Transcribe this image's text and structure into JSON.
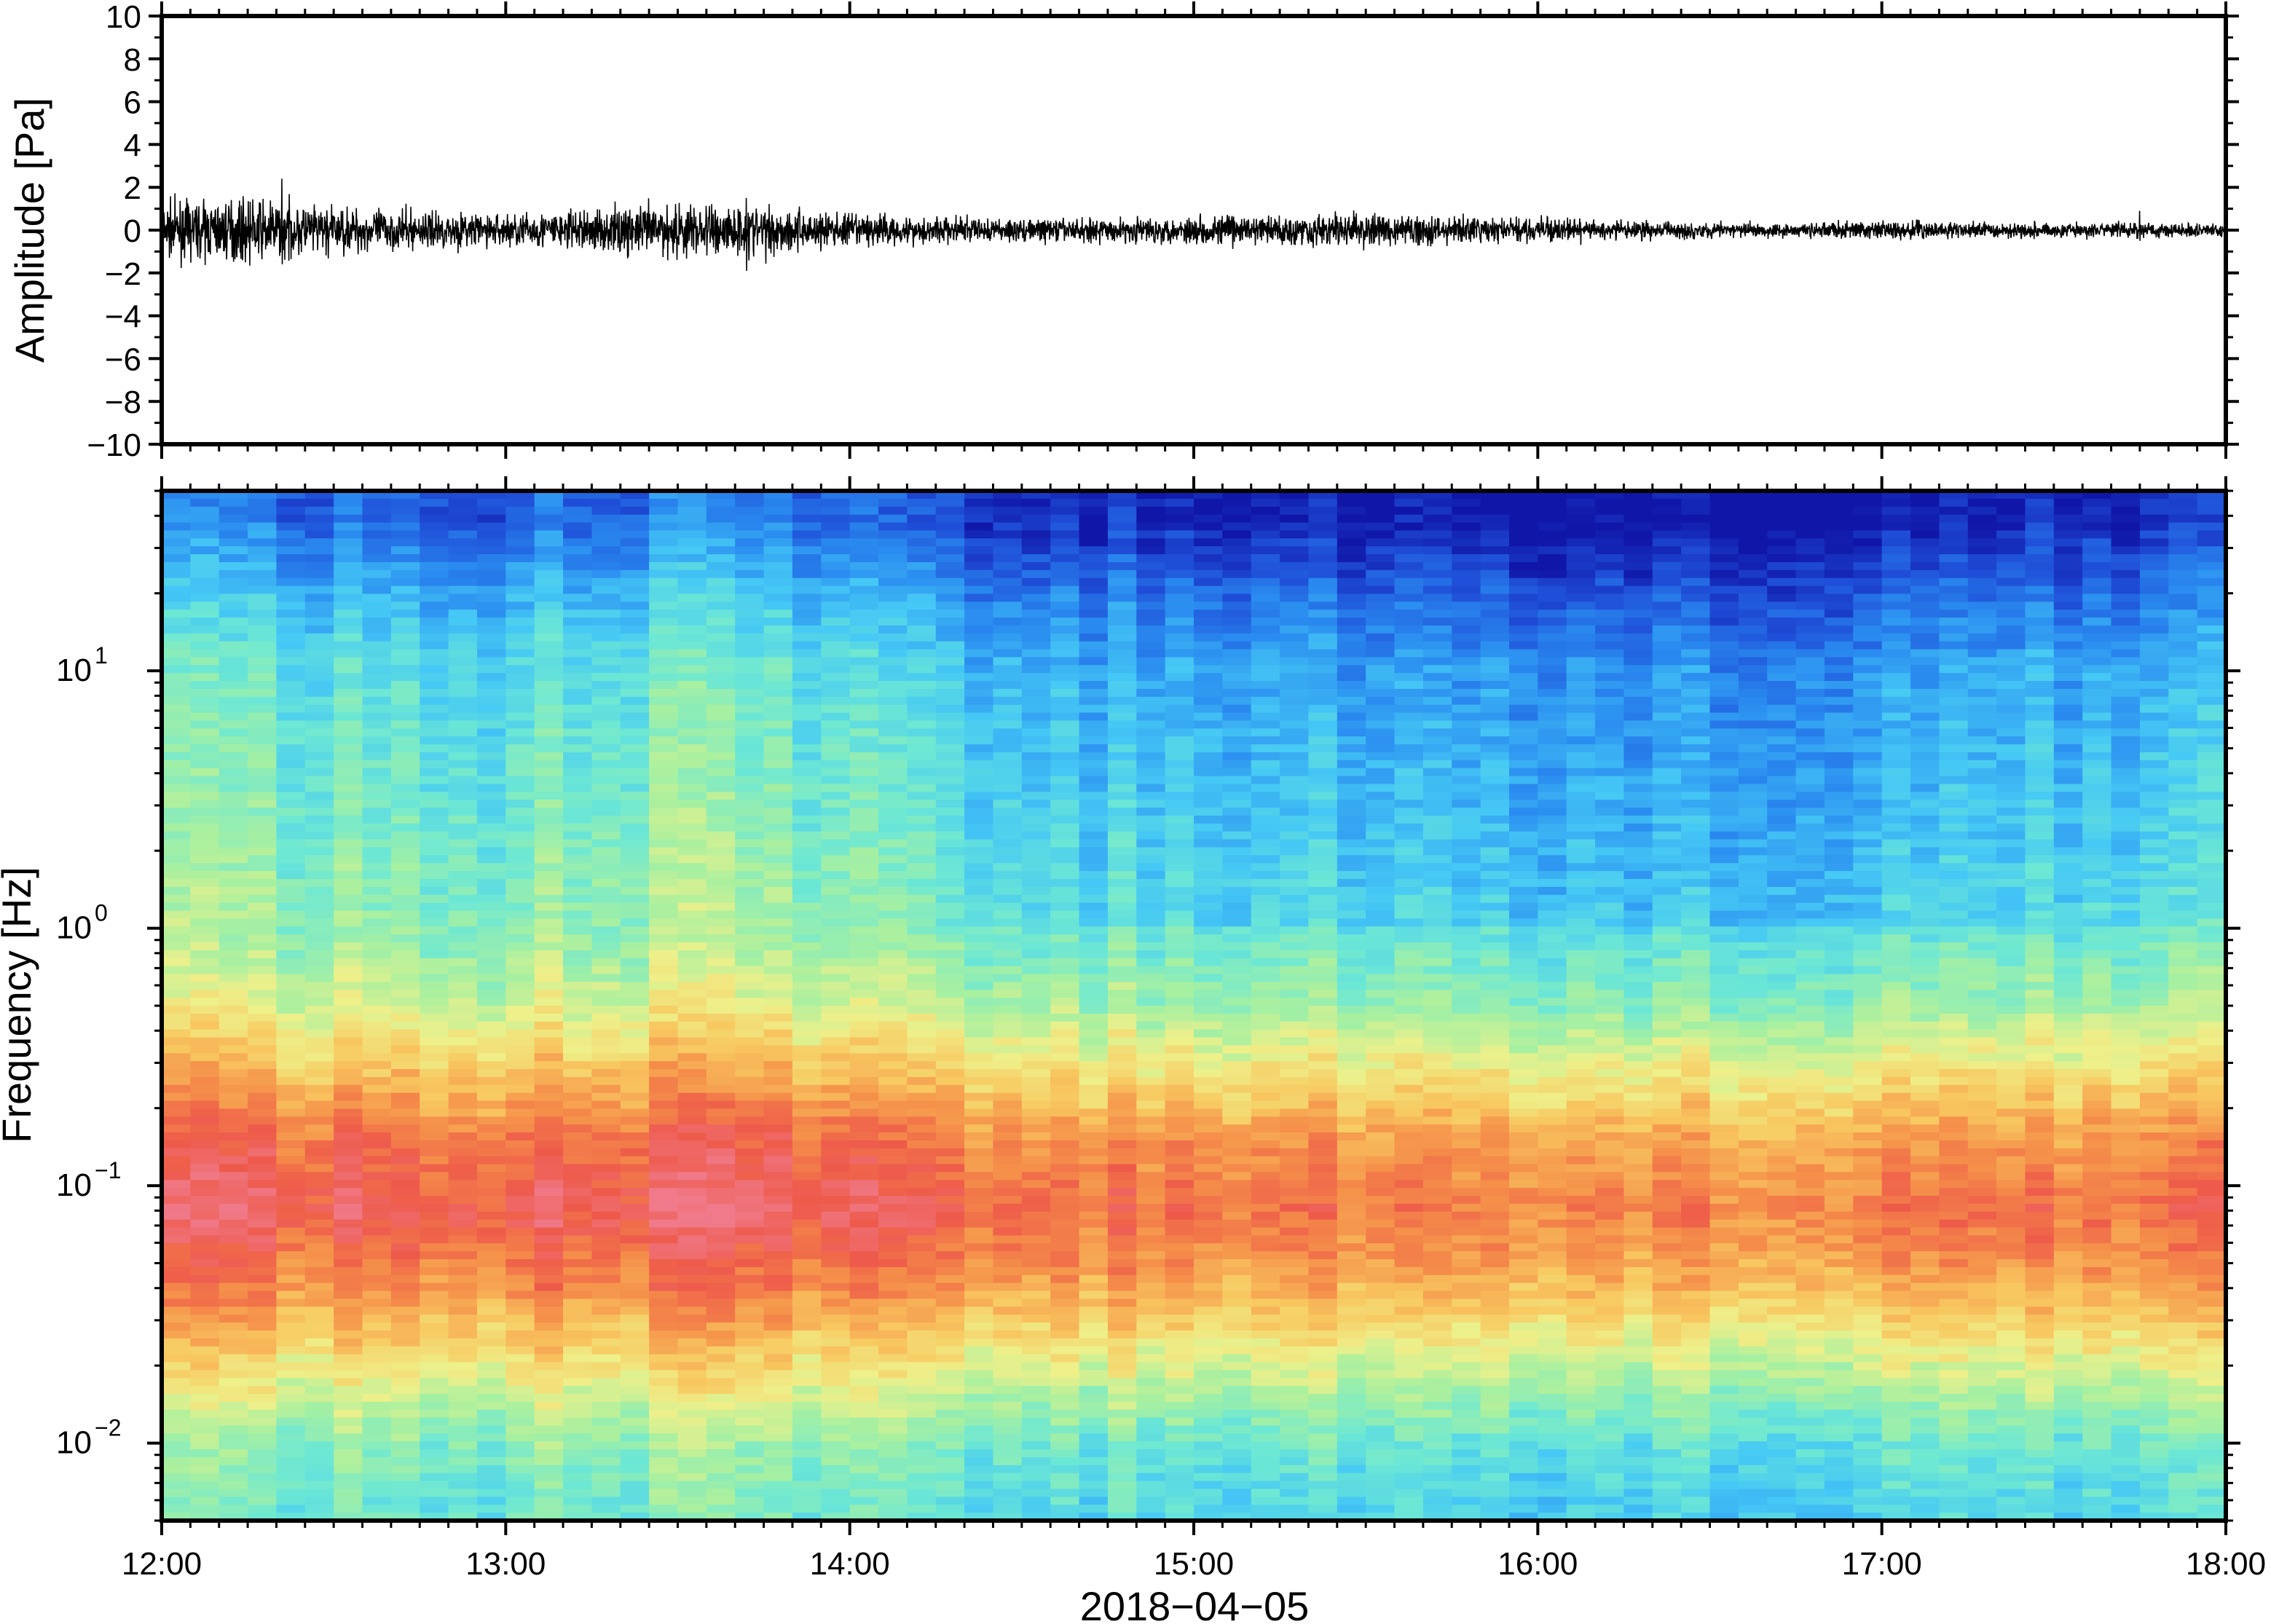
{
  "chart_data": [
    {
      "type": "line",
      "name": "amplitude-waveform",
      "ylabel": "Amplitude [Pa]",
      "ylim": [
        -10,
        10
      ],
      "yticks": [
        10,
        8,
        6,
        4,
        2,
        0,
        -2,
        -4,
        -6,
        -8,
        -10
      ],
      "ytick_labels": [
        "10",
        "8",
        "6",
        "4",
        "2",
        "0",
        "−2",
        "−4",
        "−6",
        "−8",
        "−10"
      ],
      "xlim": [
        "12:00",
        "18:00"
      ],
      "series": [
        {
          "x": [
            "12:00",
            "12:15",
            "12:30",
            "12:45",
            "13:00",
            "13:15",
            "13:30",
            "13:45",
            "14:00",
            "14:15",
            "14:30",
            "14:45",
            "15:00",
            "15:15",
            "15:30",
            "15:45",
            "16:00",
            "16:15",
            "16:30",
            "16:45",
            "17:00",
            "17:15",
            "17:30",
            "17:45",
            "18:00"
          ],
          "envelope": [
            1.1,
            1.3,
            1.0,
            0.8,
            0.7,
            0.9,
            1.2,
            1.1,
            0.7,
            0.6,
            0.5,
            0.5,
            0.6,
            0.7,
            0.7,
            0.6,
            0.5,
            0.4,
            0.35,
            0.3,
            0.4,
            0.35,
            0.3,
            0.35,
            0.3
          ],
          "color": "#000000"
        }
      ],
      "annotations": [
        {
          "x": "12:21",
          "y_max": 2.4,
          "y_min": -1.6
        },
        {
          "x": "13:42",
          "y_max": 1.5,
          "y_min": -1.9
        },
        {
          "x": "17:45",
          "y_max": 0.9,
          "y_min": -0.5
        }
      ],
      "grid": false
    },
    {
      "type": "heatmap",
      "name": "spectrogram",
      "ylabel": "Frequency [Hz]",
      "yscale": "log",
      "ylim": [
        0.005,
        50
      ],
      "yticks": [
        {
          "value": 10,
          "base": "10",
          "exp": "1"
        },
        {
          "value": 1,
          "base": "10",
          "exp": "0"
        },
        {
          "value": 0.1,
          "base": "10",
          "exp": "−1"
        },
        {
          "value": 0.01,
          "base": "10",
          "exp": "−2"
        }
      ],
      "xlim": [
        "12:00",
        "18:00"
      ],
      "xticks": [
        "12:00",
        "13:00",
        "14:00",
        "15:00",
        "16:00",
        "17:00",
        "18:00"
      ],
      "xlabel": "2018−04−05",
      "colormap": [
        "#1016a8",
        "#1f4fd8",
        "#2a8cf0",
        "#45c8f5",
        "#6de8d4",
        "#a8f0a0",
        "#eef08a",
        "#f8c860",
        "#f5904a",
        "#ee5a4a",
        "#f07a8a"
      ],
      "frequency_profile": [
        {
          "hz": 40,
          "level": 0.12
        },
        {
          "hz": 20,
          "level": 0.25
        },
        {
          "hz": 10,
          "level": 0.35
        },
        {
          "hz": 3,
          "level": 0.4
        },
        {
          "hz": 1,
          "level": 0.45
        },
        {
          "hz": 0.5,
          "level": 0.55
        },
        {
          "hz": 0.3,
          "level": 0.68
        },
        {
          "hz": 0.15,
          "level": 0.85
        },
        {
          "hz": 0.08,
          "level": 0.92
        },
        {
          "hz": 0.04,
          "level": 0.8
        },
        {
          "hz": 0.02,
          "level": 0.62
        },
        {
          "hz": 0.01,
          "level": 0.45
        },
        {
          "hz": 0.006,
          "level": 0.4
        }
      ],
      "time_profile": [
        {
          "t": "12:00",
          "offset": 0.04
        },
        {
          "t": "13:00",
          "offset": 0.0
        },
        {
          "t": "13:30",
          "offset": 0.04
        },
        {
          "t": "14:00",
          "offset": 0.0
        },
        {
          "t": "14:30",
          "offset": -0.05
        },
        {
          "t": "15:00",
          "offset": -0.06
        },
        {
          "t": "16:00",
          "offset": -0.08
        },
        {
          "t": "16:45",
          "offset": -0.09
        },
        {
          "t": "17:30",
          "offset": -0.06
        },
        {
          "t": "18:00",
          "offset": -0.05
        }
      ],
      "grid": false
    }
  ]
}
